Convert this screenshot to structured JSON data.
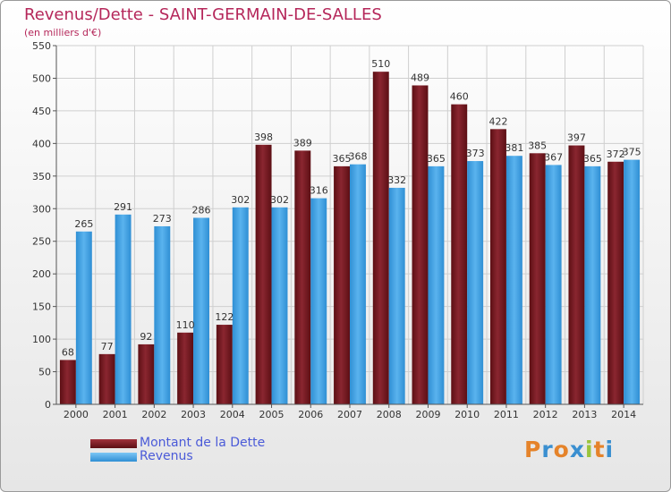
{
  "title": "Revenus/Dette - SAINT-GERMAIN-DE-SALLES",
  "subtitle": "(en milliers d'€)",
  "colors": {
    "dette": "#7a1b23",
    "revenus": "#3f9fe0",
    "title": "#b5275a",
    "legend_text": "#4a5ad8",
    "grid": "#cfcfcf"
  },
  "chart_data": {
    "type": "bar",
    "title": "Revenus/Dette - SAINT-GERMAIN-DE-SALLES",
    "ylabel": "(en milliers d'€)",
    "xlabel": "",
    "ylim": [
      0,
      550
    ],
    "yticks": [
      0,
      50,
      100,
      150,
      200,
      250,
      300,
      350,
      400,
      450,
      500,
      550
    ],
    "grid": true,
    "legend_position": "bottom-left",
    "categories": [
      "2000",
      "2001",
      "2002",
      "2003",
      "2004",
      "2005",
      "2006",
      "2007",
      "2008",
      "2009",
      "2010",
      "2011",
      "2012",
      "2013",
      "2014"
    ],
    "series": [
      {
        "name": "Montant de la Dette",
        "values": [
          68,
          77,
          92,
          110,
          122,
          398,
          389,
          365,
          510,
          489,
          460,
          422,
          385,
          397,
          372
        ]
      },
      {
        "name": "Revenus",
        "values": [
          265,
          291,
          273,
          286,
          302,
          302,
          316,
          368,
          332,
          365,
          373,
          381,
          367,
          365,
          375
        ]
      }
    ]
  },
  "legend": [
    {
      "label": "Montant de la Dette"
    },
    {
      "label": "Revenus"
    }
  ],
  "logo": {
    "letters": [
      "P",
      "r",
      "o",
      "x",
      "i",
      "t",
      "i"
    ],
    "colors": [
      "#e5832a",
      "#3a8fd0",
      "#e5832a",
      "#3a8fd0",
      "#9ac43c",
      "#e5832a",
      "#3a8fd0"
    ]
  }
}
